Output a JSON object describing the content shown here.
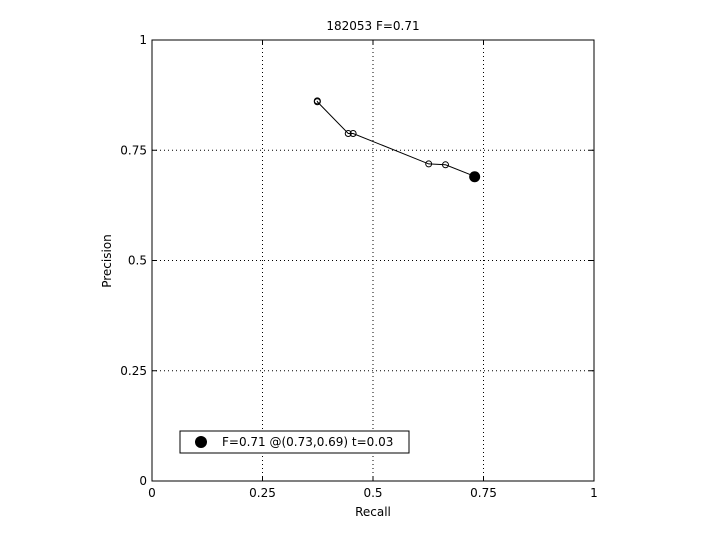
{
  "chart_data": {
    "type": "line",
    "title": "182053 F=0.71",
    "xlabel": "Recall",
    "ylabel": "Precision",
    "xlim": [
      0,
      1
    ],
    "ylim": [
      0,
      1
    ],
    "grid": true,
    "x_ticks": [
      {
        "value": 0,
        "label": "0"
      },
      {
        "value": 0.25,
        "label": "0.25"
      },
      {
        "value": 0.5,
        "label": "0.5"
      },
      {
        "value": 0.75,
        "label": "0.75"
      },
      {
        "value": 1,
        "label": "1"
      }
    ],
    "y_ticks": [
      {
        "value": 0,
        "label": "0"
      },
      {
        "value": 0.25,
        "label": "0.25"
      },
      {
        "value": 0.5,
        "label": "0.5"
      },
      {
        "value": 0.75,
        "label": "0.75"
      },
      {
        "value": 1,
        "label": "1"
      }
    ],
    "series": [
      {
        "points": [
          {
            "x": 0.374,
            "y": 0.862
          },
          {
            "x": 0.374,
            "y": 0.86
          },
          {
            "x": 0.444,
            "y": 0.788
          },
          {
            "x": 0.455,
            "y": 0.788
          },
          {
            "x": 0.626,
            "y": 0.719
          },
          {
            "x": 0.664,
            "y": 0.717
          },
          {
            "x": 0.732,
            "y": 0.69
          }
        ]
      }
    ],
    "best_point": {
      "x": 0.73,
      "y": 0.69
    },
    "legend": {
      "text": "F=0.71 @(0.73,0.69) t=0.03",
      "placement": "bottom-left"
    }
  }
}
